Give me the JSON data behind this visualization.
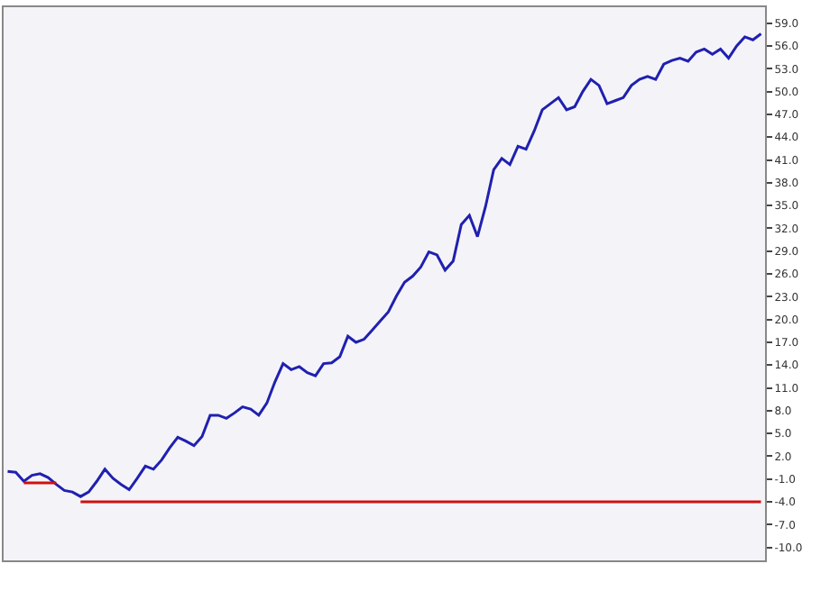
{
  "chart_data": {
    "type": "line",
    "ylim": [
      -11.7,
      61.1
    ],
    "categories": [
      null,
      null,
      null,
      null,
      null,
      null,
      null,
      null,
      null,
      null,
      null,
      null,
      null,
      null,
      null,
      null,
      null,
      null,
      null,
      null,
      null,
      null,
      null,
      null,
      null,
      null,
      null,
      null,
      null,
      null,
      null,
      null,
      null,
      null,
      null,
      null,
      null,
      null,
      null,
      null,
      null,
      null,
      null,
      null,
      null,
      null,
      null,
      null,
      null,
      null,
      null,
      null,
      null,
      null,
      null,
      null,
      null,
      null,
      null,
      null,
      null,
      null,
      null,
      null,
      null,
      null,
      null,
      null,
      null,
      null,
      null,
      null,
      null,
      null,
      null,
      null,
      null,
      null,
      null,
      null,
      null,
      null,
      null,
      null,
      null,
      null,
      null,
      null,
      null,
      null,
      null,
      null,
      null,
      null
    ],
    "yticks": [
      {
        "value": -10,
        "label": "-10.0"
      },
      {
        "value": -7,
        "label": "-7.0"
      },
      {
        "value": -4,
        "label": "-4.0"
      },
      {
        "value": -1,
        "label": "-1.0"
      },
      {
        "value": 2,
        "label": "2.0"
      },
      {
        "value": 5,
        "label": "5.0"
      },
      {
        "value": 8,
        "label": "8.0"
      },
      {
        "value": 11,
        "label": "11.0"
      },
      {
        "value": 14,
        "label": "14.0"
      },
      {
        "value": 17,
        "label": "17.0"
      },
      {
        "value": 20,
        "label": "20.0"
      },
      {
        "value": 23,
        "label": "23.0"
      },
      {
        "value": 26,
        "label": "26.0"
      },
      {
        "value": 29,
        "label": "29.0"
      },
      {
        "value": 32,
        "label": "32.0"
      },
      {
        "value": 35,
        "label": "35.0"
      },
      {
        "value": 38,
        "label": "38.0"
      },
      {
        "value": 41,
        "label": "41.0"
      },
      {
        "value": 44,
        "label": "44.0"
      },
      {
        "value": 47,
        "label": "47.0"
      },
      {
        "value": 50,
        "label": "50.0"
      },
      {
        "value": 53,
        "label": "53.0"
      },
      {
        "value": 56,
        "label": "56.0"
      },
      {
        "value": 59,
        "label": "59.0"
      }
    ],
    "marker": "none",
    "line_style": "solid",
    "series": [
      {
        "color": "#2020b0",
        "values": [
          0.0,
          -0.1,
          -1.3,
          -0.5,
          -0.3,
          -0.8,
          -1.7,
          -2.5,
          -2.7,
          -3.3,
          -2.7,
          -1.3,
          0.3,
          -0.9,
          -1.7,
          -2.4,
          -0.9,
          0.7,
          0.3,
          1.5,
          3.1,
          4.5,
          4.0,
          3.4,
          4.6,
          7.4,
          7.4,
          7.0,
          7.7,
          8.5,
          8.2,
          7.4,
          9.0,
          11.8,
          14.2,
          13.4,
          13.8,
          13.0,
          12.6,
          14.2,
          14.3,
          15.1,
          17.8,
          17.0,
          17.4,
          18.6,
          19.8,
          21.0,
          23.1,
          24.9,
          25.7,
          26.9,
          28.9,
          28.5,
          26.5,
          27.7,
          32.5,
          33.7,
          30.9,
          34.9,
          39.7,
          41.2,
          40.4,
          42.8,
          42.4,
          44.8,
          47.6,
          48.4,
          49.2,
          47.6,
          48.0,
          50.0,
          51.6,
          50.8,
          48.4,
          48.8,
          49.2,
          50.8,
          51.6,
          52.0,
          51.6,
          53.6,
          54.1,
          54.4,
          54.0,
          55.2,
          55.6,
          54.9,
          55.6,
          54.4,
          56.0,
          57.2,
          56.8,
          57.6
        ]
      },
      {
        "color": "#d01010",
        "values": [
          null,
          null,
          null,
          null,
          null,
          null,
          null,
          null,
          null,
          -4,
          -4,
          -4,
          -4,
          -4,
          -4,
          -4,
          -4,
          -4,
          -4,
          -4,
          -4,
          -4,
          -4,
          -4,
          -4,
          -4,
          -4,
          -4,
          -4,
          -4,
          -4,
          -4,
          -4,
          -4,
          -4,
          -4,
          -4,
          -4,
          -4,
          -4,
          -4,
          -4,
          -4,
          -4,
          -4,
          -4,
          -4,
          -4,
          -4,
          -4,
          -4,
          -4,
          -4,
          -4,
          -4,
          -4,
          -4,
          -4,
          -4,
          -4,
          -4,
          -4,
          -4,
          -4,
          -4,
          -4,
          -4,
          -4,
          -4,
          -4,
          -4,
          -4,
          -4,
          -4,
          -4,
          -4,
          -4,
          -4,
          -4,
          -4,
          -4,
          -4,
          -4,
          -4,
          -4,
          -4,
          -4,
          -4,
          -4,
          -4,
          -4,
          -4,
          -4,
          -4
        ]
      },
      {
        "color": "#d01010",
        "values": [
          null,
          null,
          -1.5,
          -1.5,
          -1.5,
          -1.5,
          -1.5,
          null,
          null,
          null,
          null,
          null,
          null,
          null,
          null,
          null,
          null,
          null,
          null,
          null,
          null,
          null,
          null,
          null,
          null,
          null,
          null,
          null,
          null,
          null,
          null,
          null,
          null,
          null,
          null,
          null,
          null,
          null,
          null,
          null,
          null,
          null,
          null,
          null,
          null,
          null,
          null,
          null,
          null,
          null,
          null,
          null,
          null,
          null,
          null,
          null,
          null,
          null,
          null,
          null,
          null,
          null,
          null,
          null,
          null,
          null,
          null,
          null,
          null,
          null,
          null,
          null,
          null,
          null,
          null,
          null,
          null,
          null,
          null,
          null,
          null,
          null,
          null,
          null,
          null,
          null,
          null,
          null,
          null,
          null,
          null,
          null,
          null,
          null
        ]
      }
    ]
  }
}
